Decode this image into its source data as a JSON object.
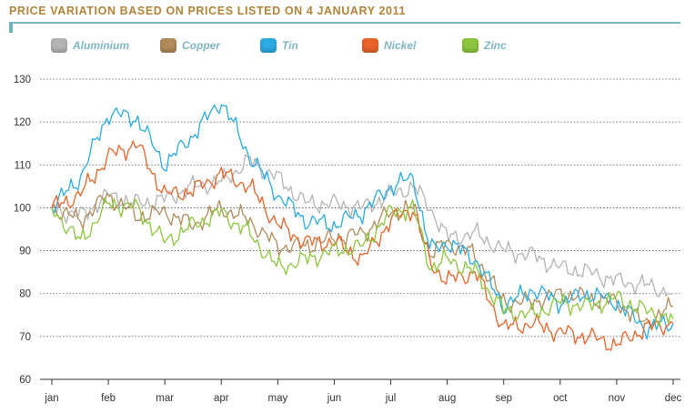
{
  "chart_data": {
    "type": "line",
    "title": "PRICE VARIATION BASED ON PRICES LISTED ON 4 JANUARY 2011",
    "xlabel": "",
    "ylabel": "",
    "ylim": [
      60,
      130
    ],
    "yticks": [
      60,
      70,
      80,
      90,
      100,
      110,
      120,
      130
    ],
    "categories": [
      "jan",
      "feb",
      "mar",
      "apr",
      "may",
      "jun",
      "jul",
      "aug",
      "sep",
      "oct",
      "nov",
      "dec"
    ],
    "grid": true,
    "legend_position": "top",
    "series": [
      {
        "name": "Aluminium",
        "color": "#b4b4b4",
        "x": [
          0,
          0.5,
          1,
          1.5,
          2,
          2.5,
          3,
          3.5,
          4,
          4.5,
          5,
          5.5,
          6,
          6.4,
          6.7,
          7,
          7.5,
          8,
          8.5,
          9,
          9.5,
          10,
          10.5,
          11
        ],
        "values": [
          100,
          98,
          103,
          101,
          102,
          105,
          106,
          111,
          107,
          101,
          101,
          100,
          103,
          105,
          100,
          93,
          94,
          90,
          89,
          86,
          85,
          83,
          82,
          80
        ]
      },
      {
        "name": "Copper",
        "color": "#b08a5a",
        "x": [
          0,
          0.5,
          1,
          1.5,
          2,
          2.5,
          3,
          3.5,
          4,
          4.5,
          5,
          5.5,
          6,
          6.4,
          6.7,
          7,
          7.5,
          8,
          8.5,
          9,
          9.5,
          10,
          10.5,
          11
        ],
        "values": [
          100,
          97,
          103,
          98,
          99,
          96,
          100,
          97,
          91,
          91,
          93,
          94,
          99,
          100,
          89,
          92,
          89,
          78,
          78,
          80,
          79,
          78,
          73,
          77
        ]
      },
      {
        "name": "Tin",
        "color": "#2aabe2",
        "x": [
          0,
          0.5,
          1,
          1.5,
          2,
          2.5,
          3,
          3.5,
          4,
          4.5,
          5,
          5.5,
          6,
          6.4,
          6.7,
          7,
          7.5,
          8,
          8.5,
          9,
          9.5,
          10,
          10.5,
          11
        ],
        "values": [
          100,
          107,
          122,
          121,
          110,
          117,
          125,
          112,
          103,
          97,
          96,
          99,
          105,
          107,
          90,
          92,
          88,
          77,
          81,
          78,
          80,
          78,
          72,
          73
        ]
      },
      {
        "name": "Nickel",
        "color": "#e8642a",
        "x": [
          0,
          0.5,
          1,
          1.5,
          2,
          2.5,
          3,
          3.5,
          4,
          4.5,
          5,
          5.5,
          6,
          6.4,
          6.7,
          7,
          7.5,
          8,
          8.5,
          9,
          9.5,
          10,
          10.5,
          11
        ],
        "values": [
          100,
          103,
          112,
          115,
          103,
          104,
          108,
          105,
          96,
          92,
          92,
          88,
          97,
          100,
          87,
          83,
          85,
          72,
          73,
          71,
          70,
          68,
          72,
          73
        ]
      },
      {
        "name": "Zinc",
        "color": "#8cc63e",
        "x": [
          0,
          0.5,
          1,
          1.5,
          2,
          2.5,
          3,
          3.5,
          4,
          4.5,
          5,
          5.5,
          6,
          6.4,
          6.7,
          7,
          7.5,
          8,
          8.5,
          9,
          9.5,
          10,
          10.5,
          11
        ],
        "values": [
          100,
          92,
          101,
          100,
          92,
          96,
          99,
          94,
          86,
          88,
          90,
          91,
          99,
          100,
          86,
          88,
          85,
          76,
          75,
          78,
          77,
          79,
          76,
          74
        ]
      }
    ]
  }
}
